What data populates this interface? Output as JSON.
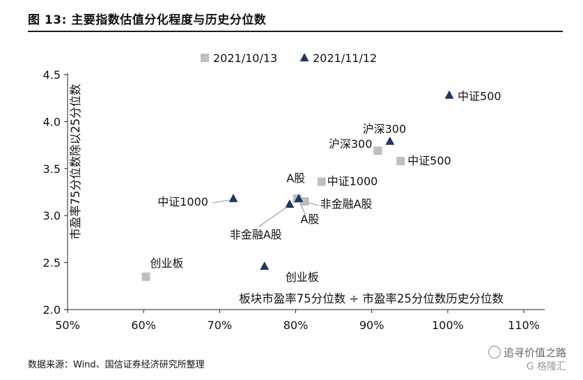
{
  "figure": {
    "title": "图 13:  主要指数估值分化程度与历史分位数",
    "source": "数据来源：Wind、国信证券经济研究所整理",
    "watermark": "追寻价值之路",
    "watermark_brand": "G 格隆汇"
  },
  "chart_data": {
    "type": "scatter",
    "xlabel": "板块市盈率75分位数 ÷ 市盈率25分位数历史分位数",
    "ylabel": "市盈率75分位数除以25分位数",
    "xlim": [
      0.5,
      1.1
    ],
    "ylim": [
      2.0,
      4.5
    ],
    "x_ticks": [
      "50%",
      "60%",
      "70%",
      "80%",
      "90%",
      "100%",
      "110%"
    ],
    "y_ticks": [
      "2.0",
      "2.5",
      "3.0",
      "3.5",
      "4.0",
      "4.5"
    ],
    "grid": false,
    "legend_position": "top-center",
    "series": [
      {
        "name": "2021/10/13",
        "marker": "square",
        "color": "#bfbfbf",
        "points": [
          {
            "label": "中证500",
            "x": 0.938,
            "y": 3.58
          },
          {
            "label": "沪深300",
            "x": 0.908,
            "y": 3.69
          },
          {
            "label": "中证1000",
            "x": 0.834,
            "y": 3.36
          },
          {
            "label": "非金融A股",
            "x": 0.812,
            "y": 3.15
          },
          {
            "label": "A股",
            "x": 0.802,
            "y": 3.18
          },
          {
            "label": "创业板",
            "x": 0.603,
            "y": 2.35
          }
        ]
      },
      {
        "name": "2021/11/12",
        "marker": "triangle",
        "color": "#1f3864",
        "points": [
          {
            "label": "中证500",
            "x": 1.002,
            "y": 4.28
          },
          {
            "label": "沪深300",
            "x": 0.924,
            "y": 3.79
          },
          {
            "label": "A股",
            "x": 0.804,
            "y": 3.18
          },
          {
            "label": "非金融A股",
            "x": 0.792,
            "y": 3.12
          },
          {
            "label": "中证1000",
            "x": 0.718,
            "y": 3.18
          },
          {
            "label": "创业板",
            "x": 0.759,
            "y": 2.46
          }
        ]
      }
    ]
  }
}
